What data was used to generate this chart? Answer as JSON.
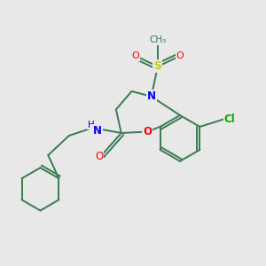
{
  "background_color": "#e8e8e8",
  "bond_color": "#3a7a50",
  "atom_colors": {
    "N": "#0000ff",
    "O": "#ff0000",
    "S": "#cccc00",
    "Cl": "#00aa00",
    "H": "#3a7a50",
    "C": "#3a7a50"
  },
  "figsize": [
    3.0,
    3.0
  ],
  "dpi": 100
}
